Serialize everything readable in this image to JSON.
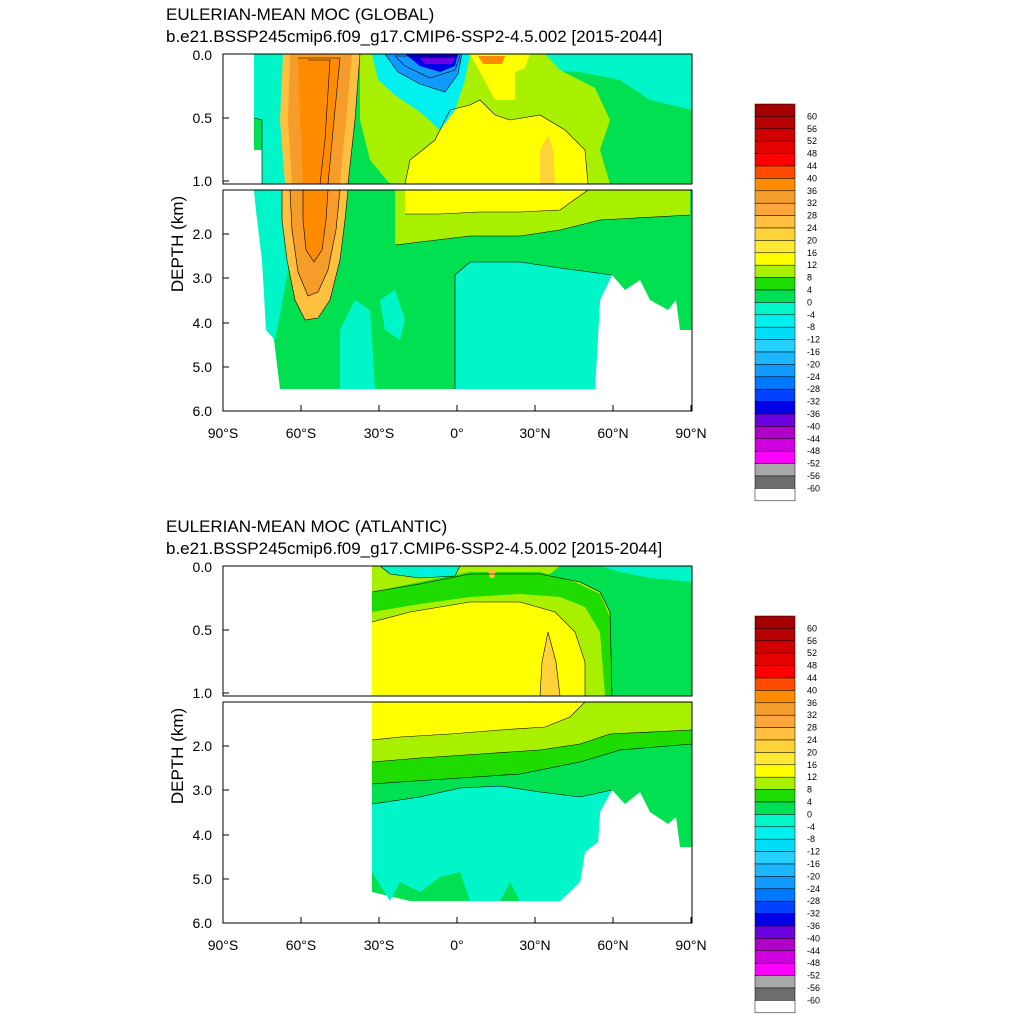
{
  "chart_data": [
    {
      "type": "heatmap",
      "subtype": "filled-contour",
      "title": "EULERIAN-MEAN MOC (GLOBAL)",
      "subtitle": "b.e21.BSSP245cmip6.f09_g17.CMIP6-SSP2-4.5.002 [2015-2044]",
      "xlabel": "",
      "ylabel": "DEPTH (km)",
      "x_ticks": [
        "90°S",
        "60°S",
        "30°S",
        "0°",
        "30°N",
        "60°N",
        "90°N"
      ],
      "y_ticks_upper": [
        "0.0",
        "0.5",
        "1.0"
      ],
      "y_ticks_lower": [
        "2.0",
        "3.0",
        "4.0",
        "5.0",
        "6.0"
      ],
      "xlim": [
        -90,
        90
      ],
      "ylim": [
        0,
        6
      ],
      "y_break_km": 1.0,
      "y_inverted": true,
      "colorbar_levels": [
        "60",
        "56",
        "52",
        "48",
        "44",
        "40",
        "36",
        "32",
        "28",
        "24",
        "20",
        "16",
        "12",
        "8",
        "4",
        "0",
        "-4",
        "-8",
        "-12",
        "-16",
        "-20",
        "-24",
        "-28",
        "-32",
        "-36",
        "-40",
        "-44",
        "-48",
        "-52",
        "-56",
        "-60"
      ],
      "features": [
        {
          "name": "southern-overturning-cell",
          "lat": -50,
          "depth_km": [
            0.1,
            3.5
          ],
          "max_value": 36
        },
        {
          "name": "tropical-negative-cell",
          "lat": -15,
          "depth_km": [
            0.0,
            0.2
          ],
          "min_value": -40
        },
        {
          "name": "northern-tropical-cell",
          "lat": 12,
          "depth_km": [
            0.0,
            0.1
          ],
          "max_value": 32
        },
        {
          "name": "nh-overturning-cell",
          "lat": 30,
          "depth_km": [
            0.6,
            1.2
          ],
          "max_value": 16
        }
      ]
    },
    {
      "type": "heatmap",
      "subtype": "filled-contour",
      "title": "EULERIAN-MEAN MOC (ATLANTIC)",
      "subtitle": "b.e21.BSSP245cmip6.f09_g17.CMIP6-SSP2-4.5.002 [2015-2044]",
      "xlabel": "",
      "ylabel": "DEPTH (km)",
      "x_ticks": [
        "90°S",
        "60°S",
        "30°S",
        "0°",
        "30°N",
        "60°N",
        "90°N"
      ],
      "y_ticks_upper": [
        "0.0",
        "0.5",
        "1.0"
      ],
      "y_ticks_lower": [
        "2.0",
        "3.0",
        "4.0",
        "5.0",
        "6.0"
      ],
      "xlim": [
        -90,
        90
      ],
      "ylim": [
        0,
        6
      ],
      "y_break_km": 1.0,
      "y_inverted": true,
      "colorbar_levels": [
        "60",
        "56",
        "52",
        "48",
        "44",
        "40",
        "36",
        "32",
        "28",
        "24",
        "20",
        "16",
        "12",
        "8",
        "4",
        "0",
        "-4",
        "-8",
        "-12",
        "-16",
        "-20",
        "-24",
        "-28",
        "-32",
        "-36",
        "-40",
        "-44",
        "-48",
        "-52",
        "-56",
        "-60"
      ],
      "data_start_lat": -34,
      "features": [
        {
          "name": "amoc-upper-cell",
          "lat": 30,
          "depth_km": [
            0.5,
            1.5
          ],
          "max_value": 16
        },
        {
          "name": "antarctic-bottom-water-cell",
          "lat": 0,
          "depth_km": [
            3.0,
            5.5
          ],
          "min_value": -4
        }
      ]
    }
  ],
  "colors": {
    "c60": "#a50000",
    "c56": "#b80000",
    "c52": "#d00000",
    "c48": "#e50000",
    "c44": "#ff0000",
    "c40": "#ff4a00",
    "c36": "#ff8c00",
    "c32": "#f59c2a",
    "c28": "#fba63c",
    "c24": "#ffbf3f",
    "c20": "#ffd23a",
    "c16": "#ffe832",
    "c12": "#ffff00",
    "c8": "#a8f000",
    "c4": "#1fdc00",
    "c0": "#00e050",
    "cm4": "#00f5c8",
    "cm8": "#00f0f0",
    "cm12": "#00ddf8",
    "cm16": "#25d0ff",
    "cm20": "#1cb6ff",
    "cm24": "#1099ff",
    "cm28": "#0077ff",
    "cm32": "#0042ff",
    "cm36": "#0000e6",
    "cm40": "#6b00e0",
    "cm44": "#b000c8",
    "cm48": "#d000e0",
    "cm52": "#ff00ff",
    "cm56": "#a9a9a9",
    "cm60": "#6e6e6e",
    "cm64": "#ffffff"
  }
}
